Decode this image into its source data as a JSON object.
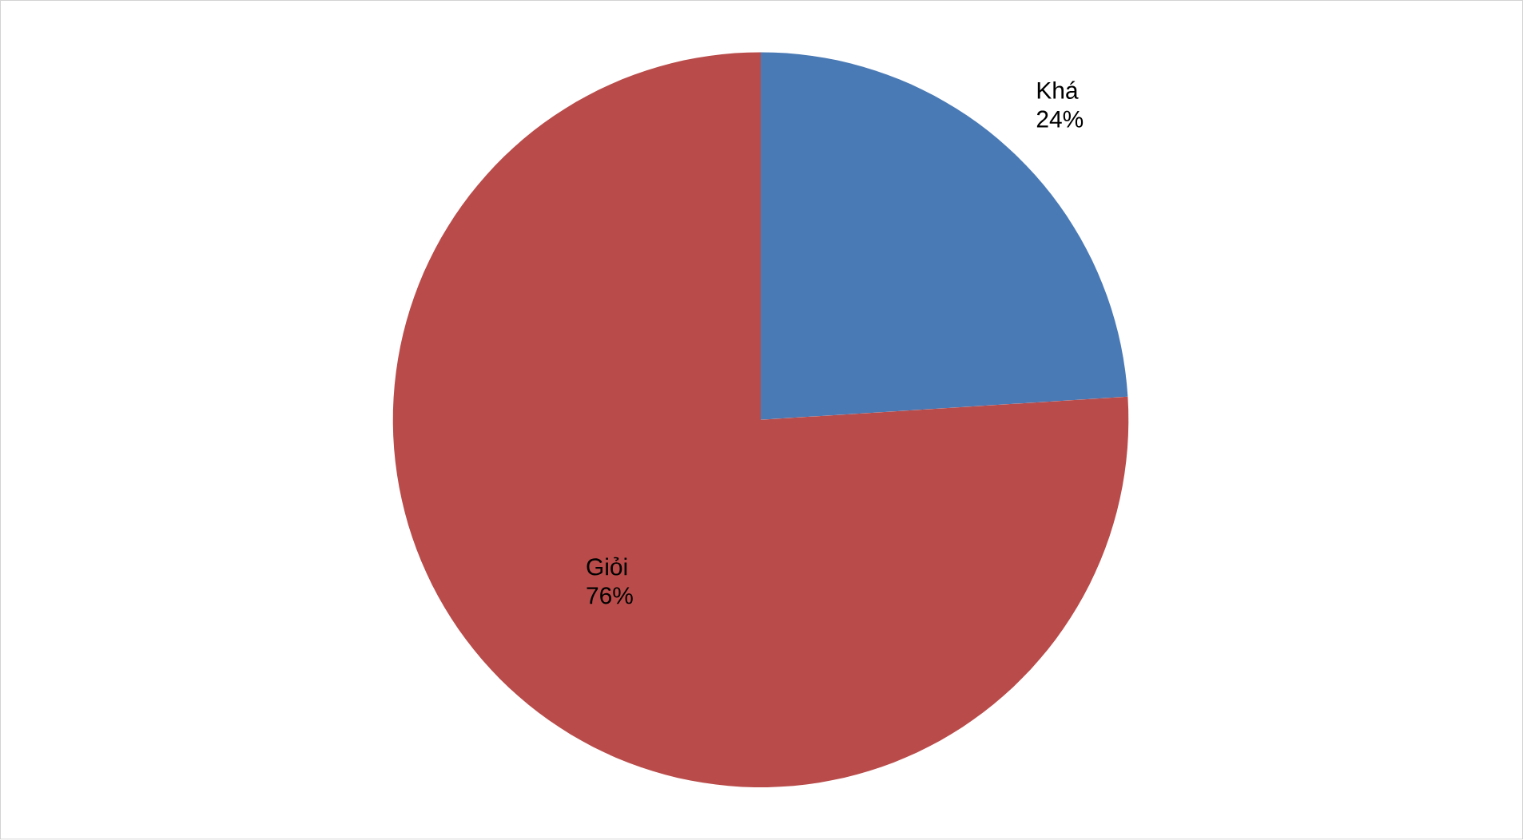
{
  "chart_data": {
    "type": "pie",
    "categories": [
      "Khá",
      "Giỏi"
    ],
    "values": [
      24,
      76
    ],
    "colors": [
      "#4a7ab5",
      "#b94c4a"
    ],
    "value_labels": [
      "24%",
      "76%"
    ]
  }
}
